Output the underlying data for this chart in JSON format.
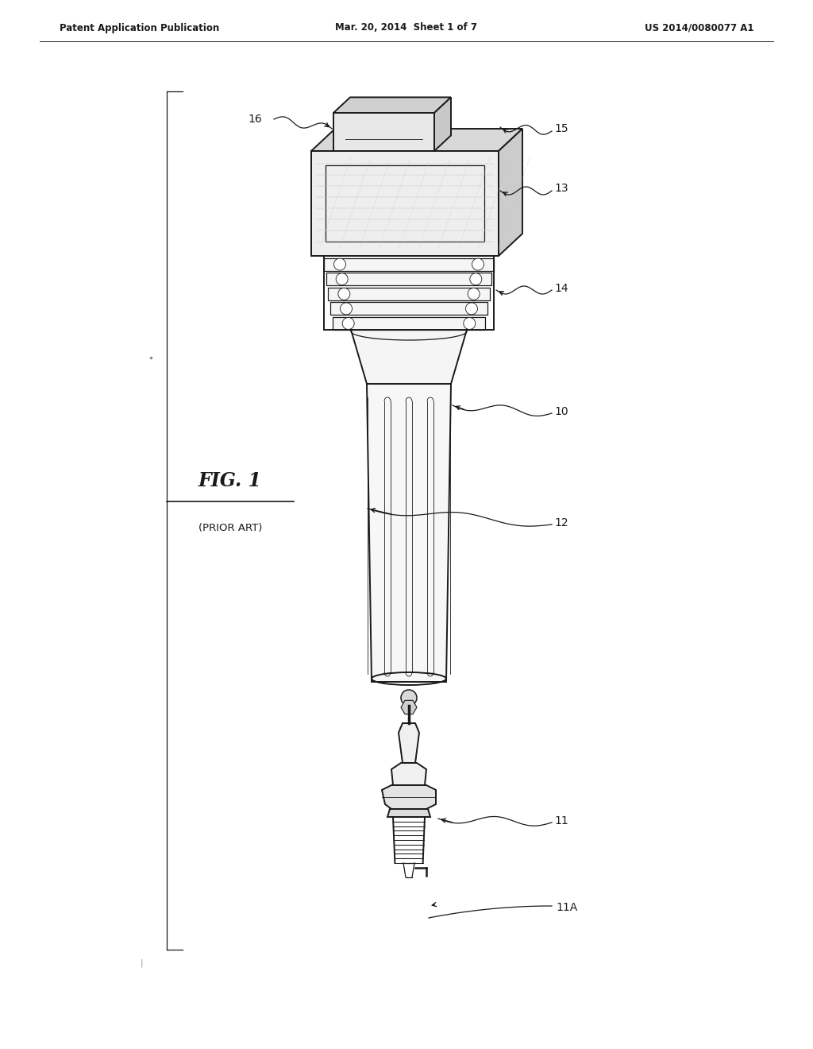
{
  "header_left": "Patent Application Publication",
  "header_mid": "Mar. 20, 2014  Sheet 1 of 7",
  "header_right": "US 2014/0080077 A1",
  "fig_label": "FIG. 1",
  "fig_sublabel": "(PRIOR ART)",
  "background": "#ffffff",
  "line_color": "#1a1a1a",
  "text_color": "#1a1a1a"
}
